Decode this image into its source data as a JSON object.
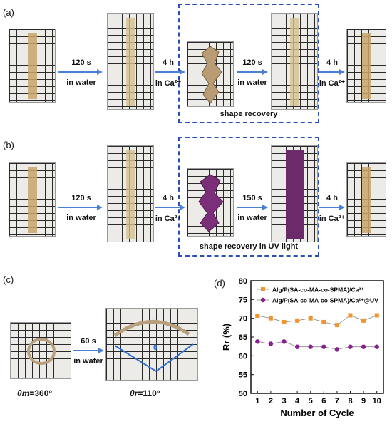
{
  "panels": {
    "a": {
      "label": "(a)",
      "steps": [
        {
          "top": "120 s",
          "bottom": "in water"
        },
        {
          "top": "4 h",
          "bottom": "in Ca²⁺"
        },
        {
          "top": "120 s",
          "bottom": "in water"
        },
        {
          "top": "4 h",
          "bottom": "in Ca²⁺"
        }
      ],
      "box_label": "shape recovery"
    },
    "b": {
      "label": "(b)",
      "steps": [
        {
          "top": "120 s",
          "bottom": "in water"
        },
        {
          "top": "4 h",
          "bottom": "in Ca²⁺"
        },
        {
          "top": "150 s",
          "bottom": "in water"
        },
        {
          "top": "4 h",
          "bottom": "in Ca²⁺"
        }
      ],
      "box_label": "shape recovery in  UV light"
    },
    "c": {
      "label": "(c)",
      "step": {
        "top": "60 s",
        "bottom": "in water"
      },
      "theta_m": "=360°",
      "theta_r": "=110°",
      "theta_m_sym": "θm",
      "theta_r_sym": "θr",
      "angle_mark": "θ"
    },
    "d": {
      "label": "(d)"
    }
  },
  "colors": {
    "arrow": "#4a7fd6",
    "box": "#2b4fb5",
    "series1": "#f5922a",
    "series2": "#8a1f8f",
    "strip_plain": "#c9a46b",
    "strip_uv": "#6b2a6a"
  },
  "chart_data": {
    "type": "line",
    "xlabel": "Number of Cycle",
    "ylabel": "Rr (%)",
    "ylim": [
      50,
      80
    ],
    "yticks": [
      50,
      55,
      60,
      65,
      70,
      75,
      80
    ],
    "x": [
      1,
      2,
      3,
      4,
      5,
      6,
      7,
      8,
      9,
      10
    ],
    "series": [
      {
        "name": "Alg/P(SA-co-MA-co-SPMA)/Ca²⁺",
        "marker": "square",
        "color": "#f5922a",
        "values": [
          70.7,
          70.0,
          69.0,
          69.4,
          70.0,
          69.0,
          68.2,
          70.8,
          69.4,
          70.8
        ]
      },
      {
        "name": "Alg/P(SA-co-MA-co-SPMA)/Ca²⁺@UV",
        "marker": "circle",
        "color": "#8a1f8f",
        "values": [
          63.8,
          63.2,
          63.8,
          62.4,
          62.4,
          62.4,
          61.7,
          62.4,
          62.4,
          62.4
        ]
      }
    ],
    "legend": "top"
  }
}
